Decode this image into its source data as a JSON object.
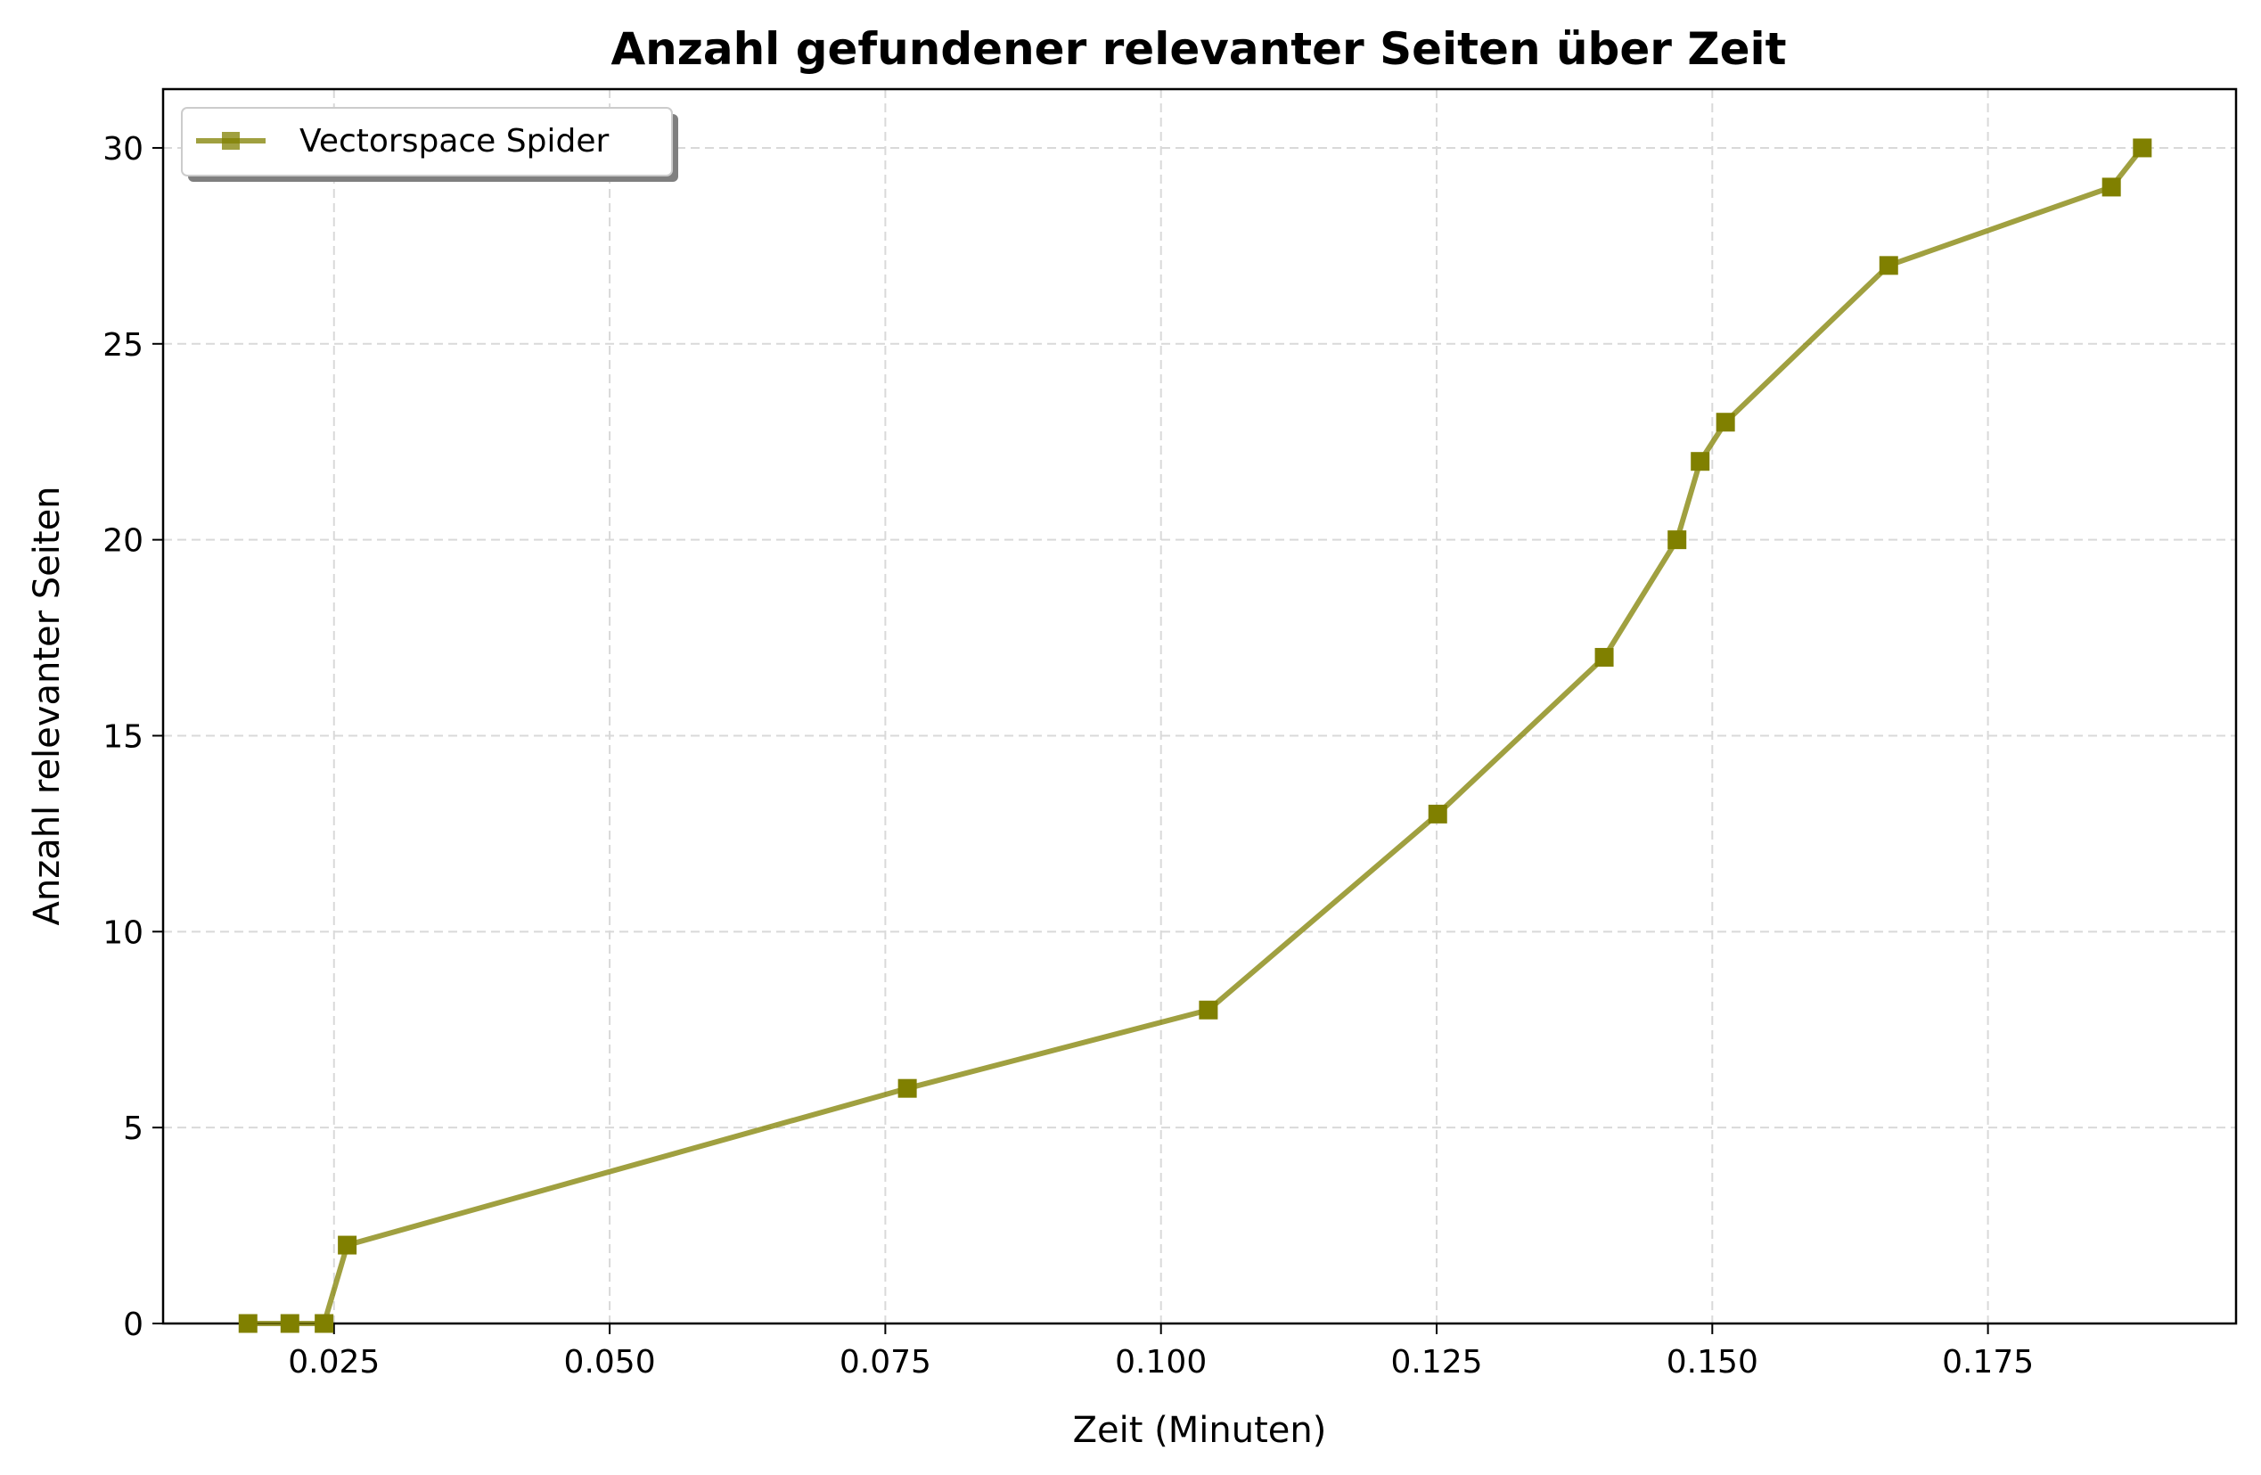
{
  "chart_data": {
    "type": "line",
    "title": "Anzahl gefundener relevanter Seiten über Zeit",
    "xlabel": "Zeit (Minuten)",
    "ylabel": "Anzahl relevanter Seiten",
    "xlim": [
      0.0095,
      0.1975
    ],
    "ylim": [
      0,
      31.5
    ],
    "xticks": [
      0.025,
      0.05,
      0.075,
      0.1,
      0.125,
      0.15,
      0.175
    ],
    "xtick_labels": [
      "0.025",
      "0.050",
      "0.075",
      "0.100",
      "0.125",
      "0.150",
      "0.175"
    ],
    "yticks": [
      0,
      5,
      10,
      15,
      20,
      25,
      30
    ],
    "ytick_labels": [
      "0",
      "5",
      "10",
      "15",
      "20",
      "25",
      "30"
    ],
    "grid": true,
    "legend_position": "top-left",
    "series": [
      {
        "name": "Vectorspace Spider",
        "color": "#808000",
        "marker": "square",
        "x": [
          0.0172,
          0.021,
          0.0241,
          0.0262,
          0.077,
          0.1043,
          0.1251,
          0.1402,
          0.1468,
          0.1489,
          0.1512,
          0.166,
          0.1862,
          0.189
        ],
        "y": [
          0,
          0,
          0,
          2,
          6,
          8,
          13,
          17,
          20,
          22,
          23,
          27,
          29,
          30
        ]
      }
    ]
  }
}
